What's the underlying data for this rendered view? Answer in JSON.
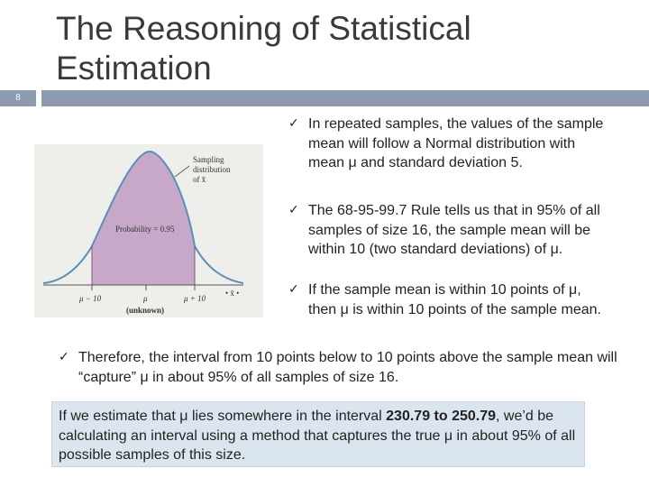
{
  "slide": {
    "title": "The Reasoning of Statistical Estimation",
    "number": "8"
  },
  "figure": {
    "label_line1": "Sampling",
    "label_line2": "distribution",
    "label_line3": "of x̄",
    "probability": "Probability = 0.95",
    "tick_left": "μ − 10",
    "tick_mid": "μ",
    "tick_right": "μ + 10",
    "unknown": "(unknown)",
    "xbar_dots": "• x̄ •",
    "curve_color": "#5a8fb8",
    "fill_color": "#c8a8c8"
  },
  "bullets": [
    {
      "check": "✓",
      "text": "In repeated samples, the values of the sample mean will follow a Normal distribution with mean μ and standard deviation 5."
    },
    {
      "check": "✓",
      "text": "The 68-95-99.7 Rule tells us that in 95% of all samples of size 16, the sample mean will be within 10 (two standard deviations) of μ."
    },
    {
      "check": "✓",
      "text": "If the sample mean is within 10 points of μ, then μ is within 10 points of the sample mean."
    },
    {
      "check": "✓",
      "text": "Therefore, the interval from 10 points below to 10 points above the sample mean will “capture” μ in about 95% of all samples of size 16."
    }
  ],
  "callout": {
    "part1": "If we estimate that μ lies somewhere in the interval ",
    "low": "230.79",
    "mid": " to ",
    "high": "250.79",
    "part2": ", we’d be calculating an interval using a method that captures the true μ in about 95% of all possible samples of this size."
  }
}
